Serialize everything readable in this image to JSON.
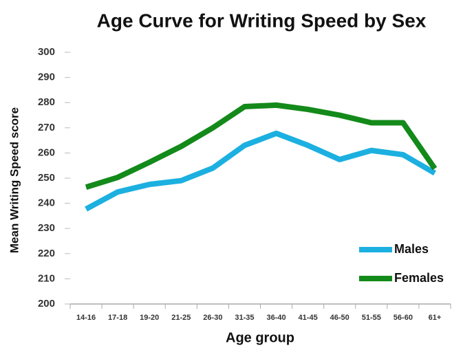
{
  "chart_data": {
    "type": "line",
    "title": "Age Curve for Writing Speed by Sex",
    "x_label": "Age group",
    "y_label": "Mean Writing Speed score",
    "categories": [
      "14-16",
      "17-18",
      "19-20",
      "21-25",
      "26-30",
      "31-35",
      "36-40",
      "41-45",
      "46-50",
      "51-55",
      "56-60",
      "61+"
    ],
    "series": [
      {
        "name": "Males",
        "color": "#1cb0e0",
        "values": [
          237.7,
          244.5,
          247.5,
          249,
          254,
          263,
          267.8,
          263,
          257.4,
          261,
          259.3,
          252
        ]
      },
      {
        "name": "Females",
        "color": "#138a1a",
        "values": [
          246.4,
          250.3,
          256.3,
          262.6,
          270,
          278.4,
          279,
          277.3,
          275,
          272,
          272,
          253.8
        ]
      }
    ],
    "ylim": [
      200,
      300
    ],
    "yticks": [
      200,
      210,
      220,
      230,
      240,
      250,
      260,
      270,
      280,
      290,
      300
    ],
    "grid": false,
    "legend": "lower right"
  }
}
